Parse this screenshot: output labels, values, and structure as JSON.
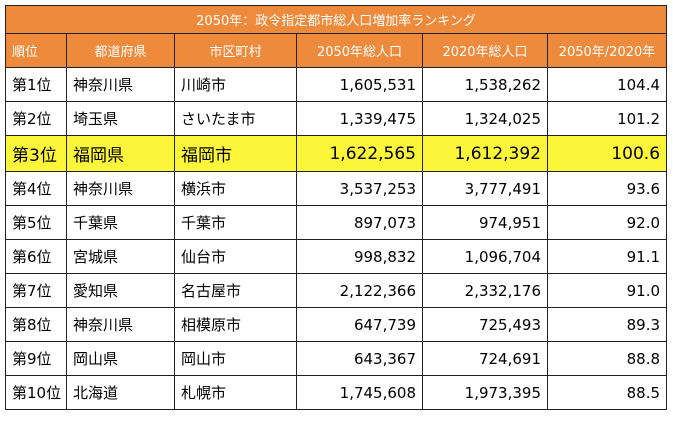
{
  "table": {
    "title": "2050年：政令指定都市総人口増加率ランキング",
    "columns": [
      "順位",
      "都道府県",
      "市区町村",
      "2050年総人口",
      "2020年総人口",
      "2050年/2020年"
    ],
    "highlight_color": "#fcf63a",
    "header_color": "#ee8a3c",
    "rows": [
      {
        "rank": "第1位",
        "pref": "神奈川県",
        "city": "川崎市",
        "pop2050": "1,605,531",
        "pop2020": "1,538,262",
        "ratio": "104.4",
        "highlight": false
      },
      {
        "rank": "第2位",
        "pref": "埼玉県",
        "city": "さいたま市",
        "pop2050": "1,339,475",
        "pop2020": "1,324,025",
        "ratio": "101.2",
        "highlight": false
      },
      {
        "rank": "第3位",
        "pref": "福岡県",
        "city": "福岡市",
        "pop2050": "1,622,565",
        "pop2020": "1,612,392",
        "ratio": "100.6",
        "highlight": true
      },
      {
        "rank": "第4位",
        "pref": "神奈川県",
        "city": "横浜市",
        "pop2050": "3,537,253",
        "pop2020": "3,777,491",
        "ratio": "93.6",
        "highlight": false
      },
      {
        "rank": "第5位",
        "pref": "千葉県",
        "city": "千葉市",
        "pop2050": "897,073",
        "pop2020": "974,951",
        "ratio": "92.0",
        "highlight": false
      },
      {
        "rank": "第6位",
        "pref": "宮城県",
        "city": "仙台市",
        "pop2050": "998,832",
        "pop2020": "1,096,704",
        "ratio": "91.1",
        "highlight": false
      },
      {
        "rank": "第7位",
        "pref": "愛知県",
        "city": "名古屋市",
        "pop2050": "2,122,366",
        "pop2020": "2,332,176",
        "ratio": "91.0",
        "highlight": false
      },
      {
        "rank": "第8位",
        "pref": "神奈川県",
        "city": "相模原市",
        "pop2050": "647,739",
        "pop2020": "725,493",
        "ratio": "89.3",
        "highlight": false
      },
      {
        "rank": "第9位",
        "pref": "岡山県",
        "city": "岡山市",
        "pop2050": "643,367",
        "pop2020": "724,691",
        "ratio": "88.8",
        "highlight": false
      },
      {
        "rank": "第10位",
        "pref": "北海道",
        "city": "札幌市",
        "pop2050": "1,745,608",
        "pop2020": "1,973,395",
        "ratio": "88.5",
        "highlight": false
      }
    ]
  }
}
